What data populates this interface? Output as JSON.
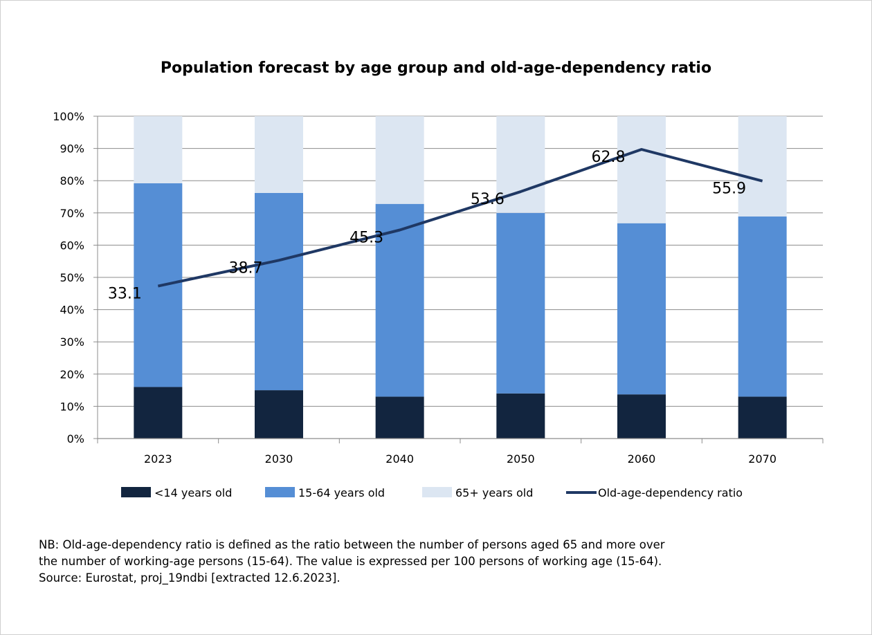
{
  "chart_data": {
    "type": "bar",
    "stacked": true,
    "title": "Population forecast by age group and old-age-dependency ratio",
    "categories": [
      "2023",
      "2030",
      "2040",
      "2050",
      "2060",
      "2070"
    ],
    "series": [
      {
        "name": "<14 years old",
        "kind": "bar",
        "color": "#12253f",
        "values": [
          16,
          15,
          13,
          14,
          13.7,
          13
        ]
      },
      {
        "name": "15-64 years old",
        "kind": "bar",
        "color": "#558ed5",
        "values": [
          63.2,
          61.2,
          59.8,
          56,
          53.1,
          55.9
        ]
      },
      {
        "name": "65+ years old",
        "kind": "bar",
        "color": "#dce6f2",
        "values": [
          20.8,
          23.8,
          27.2,
          30,
          33.2,
          31.1
        ]
      },
      {
        "name": "Old-age-dependency ratio",
        "kind": "line",
        "color": "#1f3864",
        "values": [
          33.1,
          38.7,
          45.3,
          53.6,
          62.8,
          55.9
        ],
        "labels": [
          "33.1",
          "38.7",
          "45.3",
          "53.6",
          "62.8",
          "55.9"
        ],
        "plotted_at_percent": [
          47.3,
          55.3,
          64.7,
          76.6,
          89.7,
          79.9
        ]
      }
    ],
    "yaxis": {
      "ylim": [
        0,
        100
      ],
      "ticks": [
        0,
        10,
        20,
        30,
        40,
        50,
        60,
        70,
        80,
        90,
        100
      ],
      "tick_labels": [
        "0%",
        "10%",
        "20%",
        "30%",
        "40%",
        "50%",
        "60%",
        "70%",
        "80%",
        "90%",
        "100%"
      ]
    },
    "grid": true,
    "legend_position": "bottom"
  },
  "notes": {
    "line1": "NB: Old-age-dependency ratio is defined as the ratio between the number of persons aged 65 and more over",
    "line2": "the number of working-age persons (15-64). The value is expressed per 100 persons of working age (15-64).",
    "line3": "Source: Eurostat, proj_19ndbi [extracted 12.6.2023]."
  }
}
